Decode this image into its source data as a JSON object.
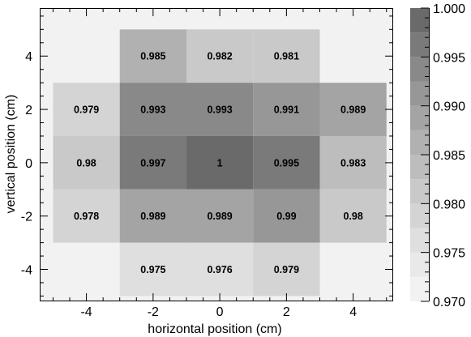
{
  "chart_data": {
    "type": "heatmap",
    "xlabel": "horizontal position (cm)",
    "ylabel": "vertical position (cm)",
    "x_bin_centers": [
      -4,
      -2,
      0,
      2,
      4
    ],
    "y_bin_centers": [
      4,
      2,
      0,
      -2,
      -4
    ],
    "x_tick_labels": [
      "-4",
      "-2",
      "0",
      "2",
      "4"
    ],
    "y_tick_labels": [
      "4",
      "2",
      "0",
      "-2",
      "-4"
    ],
    "xlim": [
      -5.4,
      5.2
    ],
    "ylim": [
      -5.2,
      5.8
    ],
    "cells": [
      [
        null,
        0.985,
        0.982,
        0.981,
        null
      ],
      [
        0.979,
        0.993,
        0.993,
        0.991,
        0.989
      ],
      [
        0.98,
        0.997,
        1.0,
        0.995,
        0.983
      ],
      [
        0.978,
        0.989,
        0.989,
        0.99,
        0.98
      ],
      [
        null,
        0.975,
        0.976,
        0.979,
        null
      ]
    ],
    "cell_labels": [
      [
        "",
        "0.985",
        "0.982",
        "0.981",
        ""
      ],
      [
        "0.979",
        "0.993",
        "0.993",
        "0.991",
        "0.989"
      ],
      [
        "0.98",
        "0.997",
        "1",
        "0.995",
        "0.983"
      ],
      [
        "0.978",
        "0.989",
        "0.989",
        "0.99",
        "0.98"
      ],
      [
        "",
        "0.975",
        "0.976",
        "0.979",
        ""
      ]
    ],
    "colorbar": {
      "min": 0.97,
      "max": 1.0,
      "tick_labels": [
        "1.000",
        "0.995",
        "0.990",
        "0.985",
        "0.980",
        "0.975",
        "0.970"
      ],
      "tick_values": [
        1.0,
        0.995,
        0.99,
        0.985,
        0.98,
        0.975,
        0.97
      ],
      "levels": 12,
      "palette": [
        "#f2f2f2",
        "#e9e9e9",
        "#dfdfdf",
        "#d4d4d4",
        "#c9c9c9",
        "#bdbdbd",
        "#b1b1b1",
        "#a4a4a4",
        "#979797",
        "#898989",
        "#7a7a7a",
        "#6a6a6a"
      ]
    },
    "background_color": "#f2f2f2",
    "grid": false
  }
}
